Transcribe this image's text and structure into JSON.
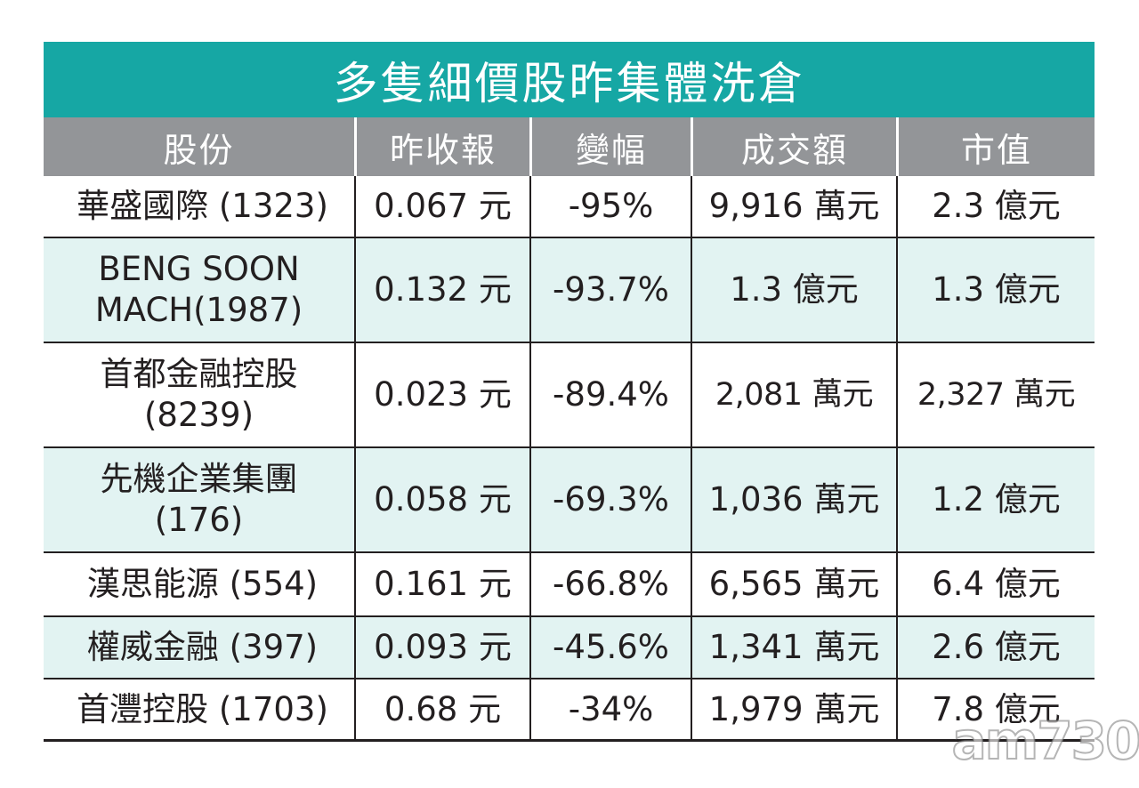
{
  "title": "多隻細價股昨集體洗倉",
  "headers": [
    "股份",
    "昨收報",
    "變幅",
    "成交額",
    "市值"
  ],
  "rows": [
    [
      "華盛國際 (1323)",
      "0.067 元",
      "-95%",
      "9,916 萬元",
      "2.3 億元"
    ],
    [
      "BENG SOON MACH(1987)",
      "0.132 元",
      "-93.7%",
      "1.3 億元",
      "1.3 億元"
    ],
    [
      "首都金融控股 (8239)",
      "0.023 元",
      "-89.4%",
      "2,081 萬元",
      "2,327 萬元"
    ],
    [
      "先機企業集團 (176)",
      "0.058 元",
      "-69.3%",
      "1,036 萬元",
      "1.2 億元"
    ],
    [
      "漢思能源 (554)",
      "0.161 元",
      "-66.8%",
      "6,565 萬元",
      "6.4 億元"
    ],
    [
      "權威金融 (397)",
      "0.093 元",
      "-45.6%",
      "1,341 萬元",
      "2.6 億元"
    ],
    [
      "首灃控股 (1703)",
      "0.68 元",
      "-34%",
      "1,979 萬元",
      "7.8 億元"
    ]
  ],
  "row_display": [
    {
      "name_line1": "華盛國際 (1323)",
      "name_line2": ""
    },
    {
      "name_line1": "BENG SOON",
      "name_line2": "MACH(1987)"
    },
    {
      "name_line1": "首都金融控股",
      "name_line2": "(8239)"
    },
    {
      "name_line1": "先機企業集團",
      "name_line2": "(176)"
    },
    {
      "name_line1": "漢思能源 (554)",
      "name_line2": ""
    },
    {
      "name_line1": "權威金融 (397)",
      "name_line2": ""
    },
    {
      "name_line1": "首灃控股 (1703)",
      "name_line2": ""
    }
  ],
  "watermark": "am730",
  "colors": {
    "title_bg": "#16a7a4",
    "header_bg": "#939598",
    "tint_row": "#e2f3f2",
    "text": "#231f20"
  }
}
